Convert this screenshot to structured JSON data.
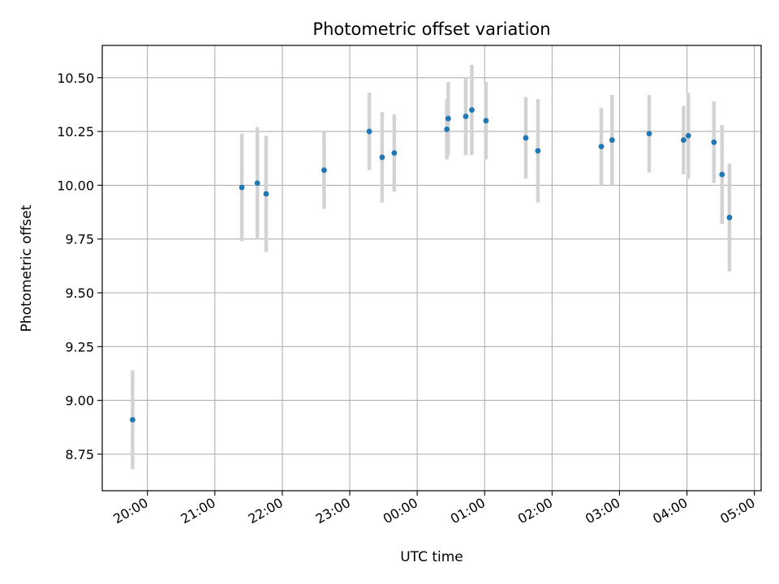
{
  "chart_data": {
    "type": "scatter",
    "title": "Photometric offset variation",
    "xlabel": "UTC time",
    "ylabel": "Photometric offset",
    "x_axis": "time (UTC, hours after 00:00 of first night; ticks wrap at 24h)",
    "xlim": [
      19.33,
      29.1
    ],
    "ylim": [
      8.58,
      10.65
    ],
    "grid": true,
    "x_ticks": [
      {
        "value": 20,
        "label": "20:00"
      },
      {
        "value": 21,
        "label": "21:00"
      },
      {
        "value": 22,
        "label": "22:00"
      },
      {
        "value": 23,
        "label": "23:00"
      },
      {
        "value": 24,
        "label": "00:00"
      },
      {
        "value": 25,
        "label": "01:00"
      },
      {
        "value": 26,
        "label": "02:00"
      },
      {
        "value": 27,
        "label": "03:00"
      },
      {
        "value": 28,
        "label": "04:00"
      },
      {
        "value": 29,
        "label": "05:00"
      }
    ],
    "y_ticks": [
      {
        "value": 8.75,
        "label": "8.75"
      },
      {
        "value": 9.0,
        "label": "9.00"
      },
      {
        "value": 9.25,
        "label": "9.25"
      },
      {
        "value": 9.5,
        "label": "9.50"
      },
      {
        "value": 9.75,
        "label": "9.75"
      },
      {
        "value": 10.0,
        "label": "10.00"
      },
      {
        "value": 10.25,
        "label": "10.25"
      },
      {
        "value": 10.5,
        "label": "10.50"
      }
    ],
    "point_color": "#1f77b4",
    "errorbar_color": "#d3d3d3",
    "points": [
      {
        "x": 19.78,
        "y": 8.91,
        "err": 0.23
      },
      {
        "x": 21.4,
        "y": 9.99,
        "err": 0.25
      },
      {
        "x": 21.63,
        "y": 10.01,
        "err": 0.26
      },
      {
        "x": 21.76,
        "y": 9.96,
        "err": 0.27
      },
      {
        "x": 22.62,
        "y": 10.07,
        "err": 0.18
      },
      {
        "x": 23.29,
        "y": 10.25,
        "err": 0.18
      },
      {
        "x": 23.48,
        "y": 10.13,
        "err": 0.21
      },
      {
        "x": 23.66,
        "y": 10.15,
        "err": 0.18
      },
      {
        "x": 24.44,
        "y": 10.26,
        "err": 0.14
      },
      {
        "x": 24.46,
        "y": 10.31,
        "err": 0.17
      },
      {
        "x": 24.72,
        "y": 10.32,
        "err": 0.18
      },
      {
        "x": 24.81,
        "y": 10.35,
        "err": 0.21
      },
      {
        "x": 25.02,
        "y": 10.3,
        "err": 0.18
      },
      {
        "x": 25.61,
        "y": 10.22,
        "err": 0.19
      },
      {
        "x": 25.79,
        "y": 10.16,
        "err": 0.24
      },
      {
        "x": 26.73,
        "y": 10.18,
        "err": 0.18
      },
      {
        "x": 26.89,
        "y": 10.21,
        "err": 0.21
      },
      {
        "x": 27.44,
        "y": 10.24,
        "err": 0.18
      },
      {
        "x": 27.95,
        "y": 10.21,
        "err": 0.16
      },
      {
        "x": 28.02,
        "y": 10.23,
        "err": 0.2
      },
      {
        "x": 28.4,
        "y": 10.2,
        "err": 0.19
      },
      {
        "x": 28.52,
        "y": 10.05,
        "err": 0.23
      },
      {
        "x": 28.63,
        "y": 9.85,
        "err": 0.25
      }
    ]
  }
}
